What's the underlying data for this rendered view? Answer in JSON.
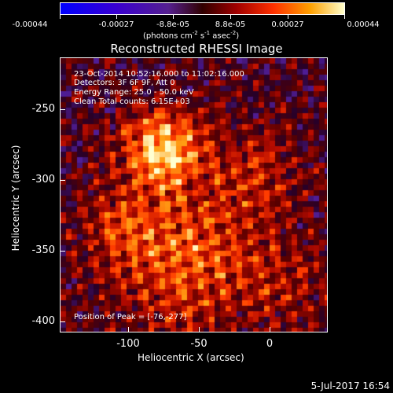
{
  "colorbar": {
    "ticks": [
      "-0.00044",
      "-0.00027",
      "-8.8e-05",
      "8.8e-05",
      "0.00027",
      "0.00044"
    ],
    "unit_prefix": "(photons cm",
    "unit_exp1": "-2",
    "unit_mid1": " s",
    "unit_exp2": "-1",
    "unit_mid2": " asec",
    "unit_exp3": "-2",
    "unit_suffix": ")"
  },
  "title": "Reconstructed RHESSI Image",
  "info": {
    "line1": "23-Oct-2014 10:52:16.000 to 11:02:16.000",
    "line2": "Detectors: 3F 6F 9F, Att 0",
    "line3": "Energy Range: 25.0 - 50.0 keV",
    "line4": "Clean    Total counts: 6.15E+03"
  },
  "peak": "Position of Peak = [-76,-277]",
  "axes": {
    "xlabel": "Heliocentric X (arcsec)",
    "ylabel": "Heliocentric Y (arcsec)",
    "xticks": [
      "-100",
      "-50",
      "0"
    ],
    "yticks": [
      "-250",
      "-300",
      "-350",
      "-400"
    ]
  },
  "datestamp": "5-Jul-2017 16:54"
}
